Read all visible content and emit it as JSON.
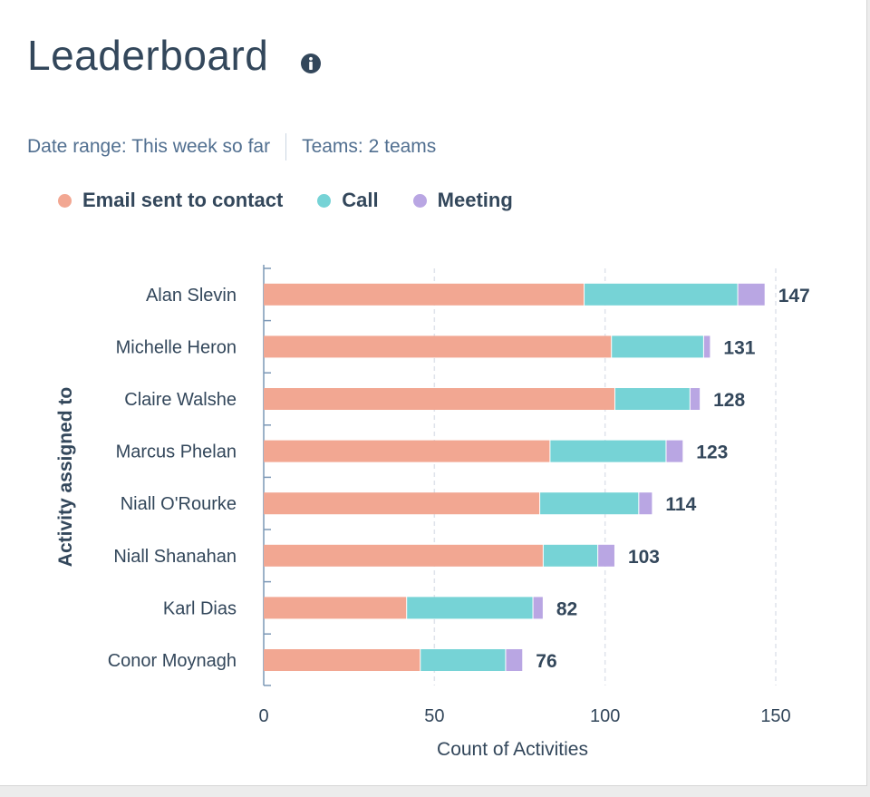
{
  "title": "Leaderboard",
  "filters": {
    "date_range": "Date range: This week so far",
    "teams": "Teams: 2 teams"
  },
  "colors": {
    "email": "#f2a792",
    "call": "#76d3d6",
    "meeting": "#b9a6e3",
    "text": "#33475b",
    "grid": "#dfe3eb",
    "axis": "#7c98b6"
  },
  "chart_data": {
    "type": "bar",
    "orientation": "horizontal",
    "stacked": true,
    "categories": [
      "Alan Slevin",
      "Michelle Heron",
      "Claire Walshe",
      "Marcus Phelan",
      "Niall O'Rourke",
      "Niall Shanahan",
      "Karl Dias",
      "Conor Moynagh"
    ],
    "series": [
      {
        "name": "Email sent to contact",
        "color": "#f2a792",
        "values": [
          94,
          102,
          103,
          84,
          81,
          82,
          42,
          46
        ]
      },
      {
        "name": "Call",
        "color": "#76d3d6",
        "values": [
          45,
          27,
          22,
          34,
          29,
          16,
          37,
          25
        ]
      },
      {
        "name": "Meeting",
        "color": "#b9a6e3",
        "values": [
          8,
          2,
          3,
          5,
          4,
          5,
          3,
          5
        ]
      }
    ],
    "totals": [
      "147",
      "131",
      "128",
      "123",
      "114",
      "103",
      "82",
      "76"
    ],
    "xlabel": "Count of Activities",
    "ylabel": "Activity assigned to",
    "xlim": [
      0,
      150
    ],
    "xticks": [
      "0",
      "50",
      "100",
      "150"
    ],
    "grid": true,
    "legend": "top-left"
  }
}
